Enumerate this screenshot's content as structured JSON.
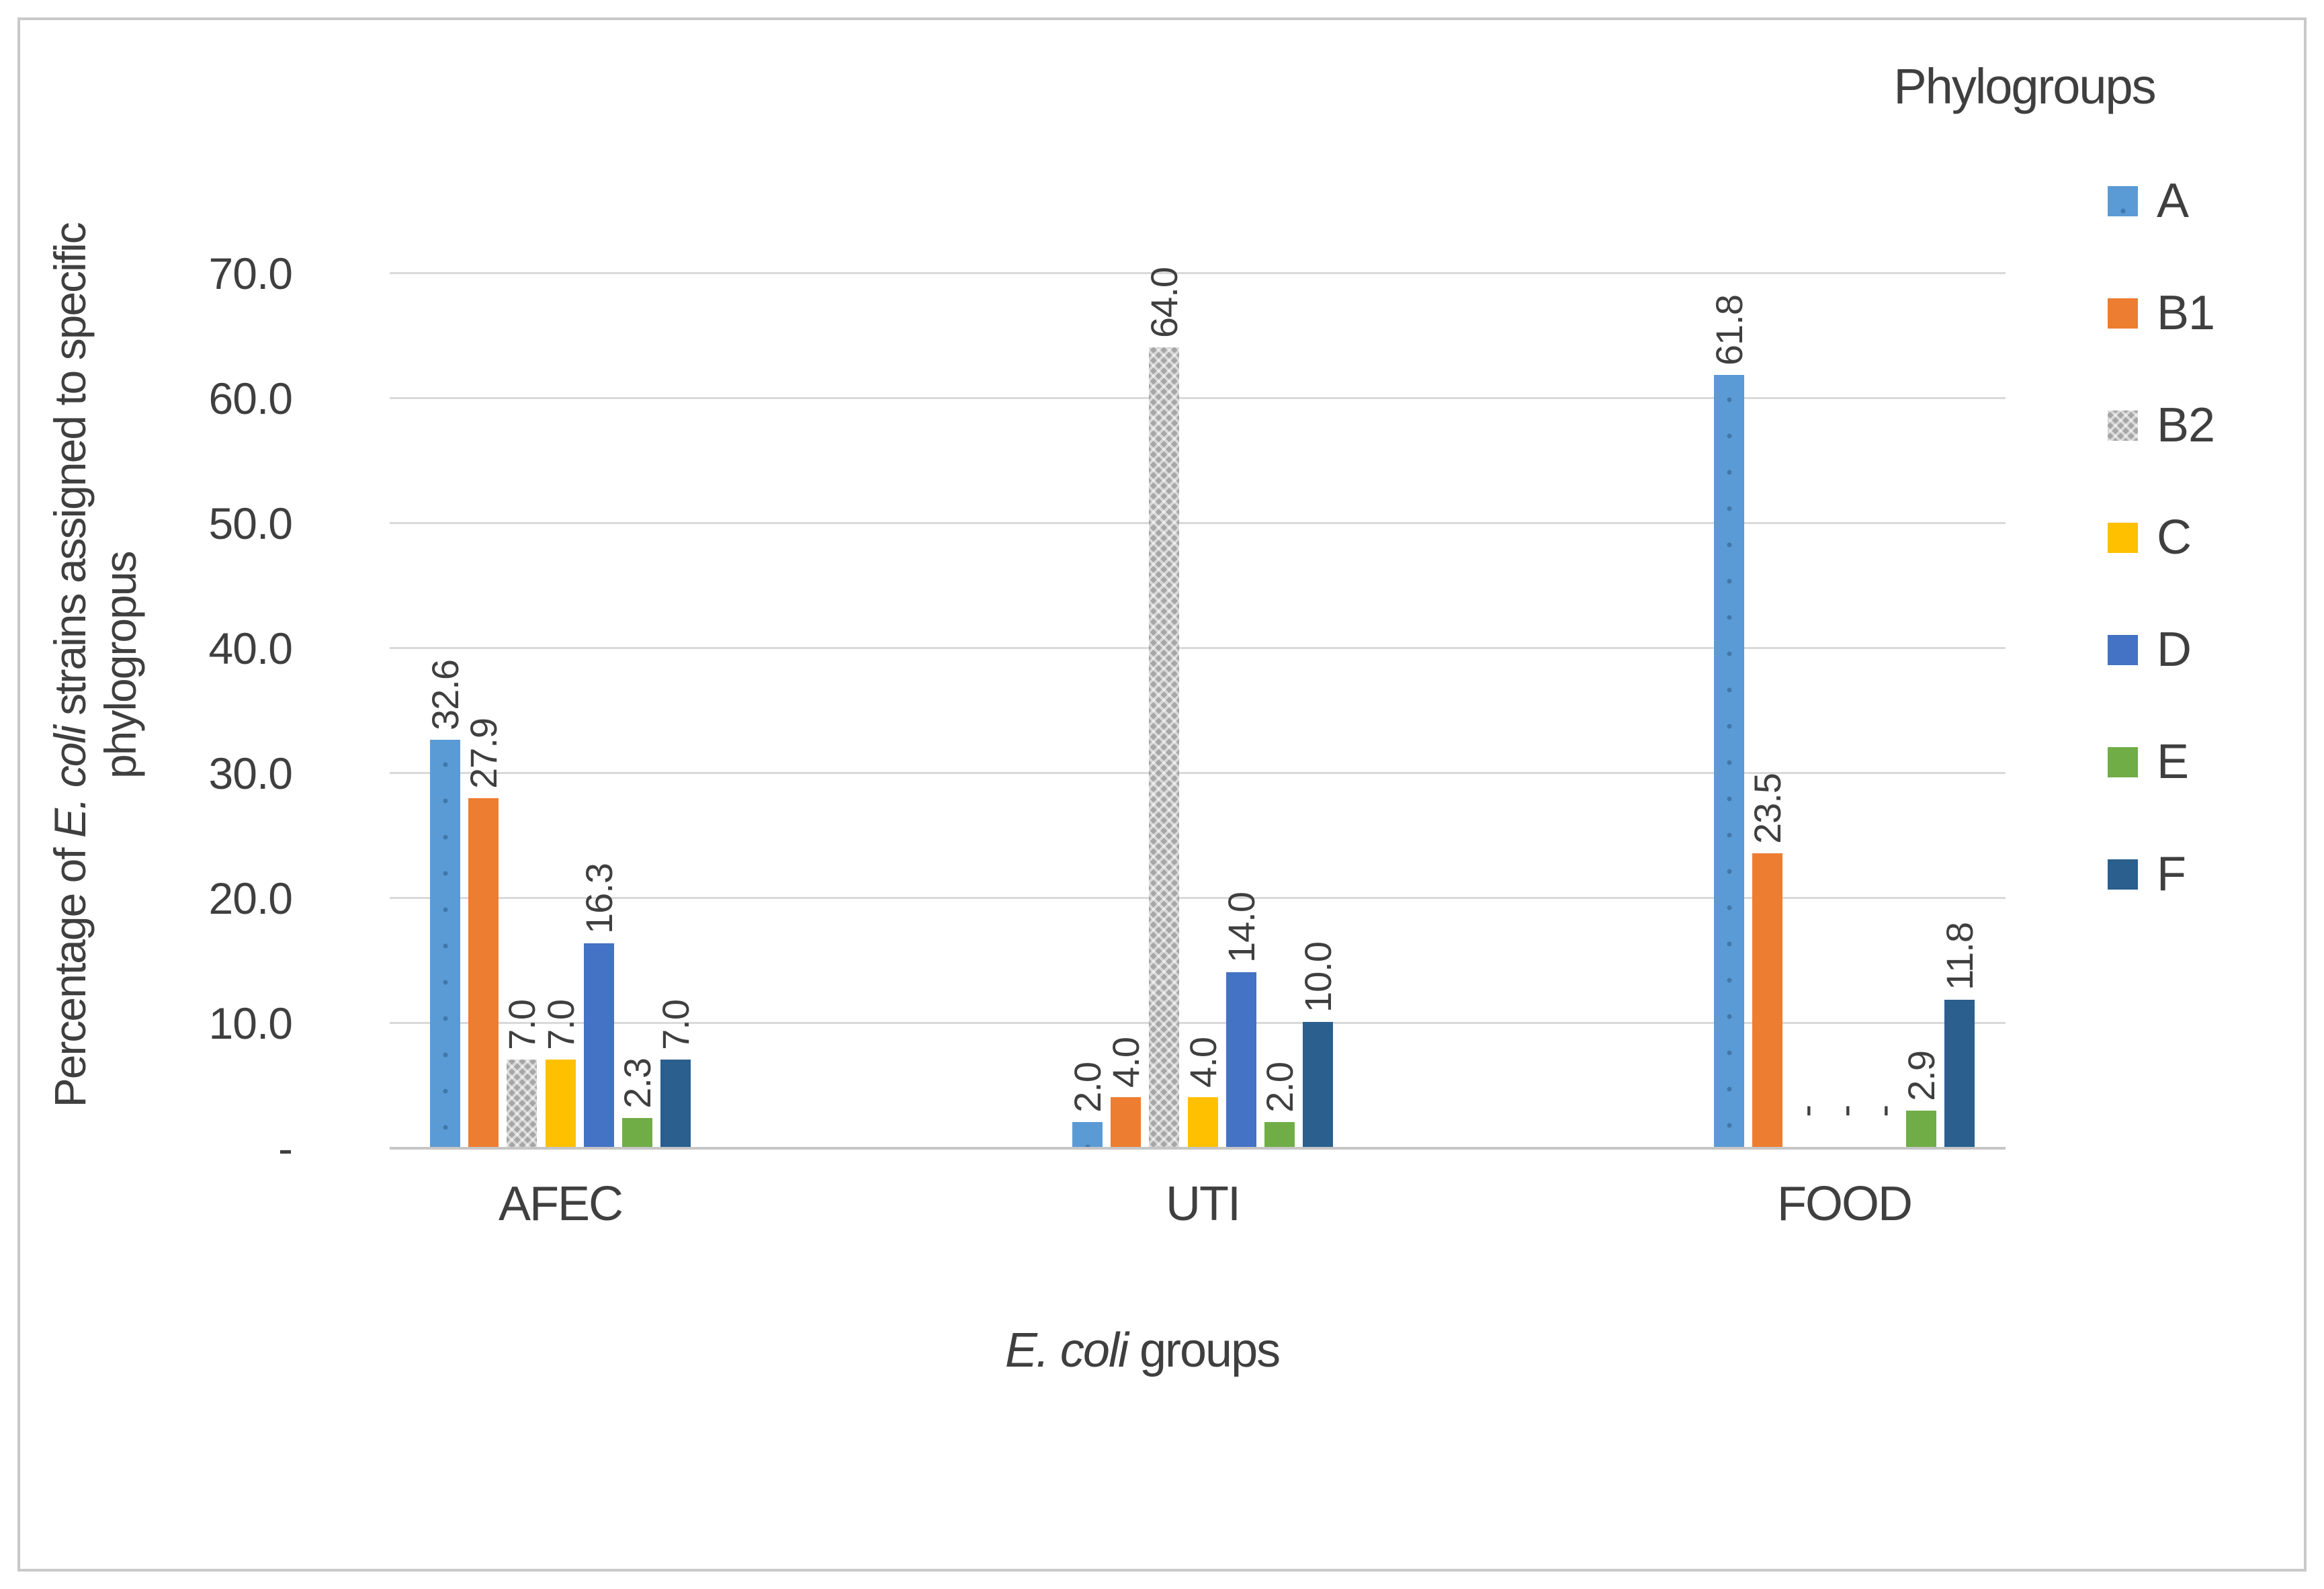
{
  "figure": {
    "border_color": "#c9c9c9",
    "background": "#ffffff"
  },
  "y_axis": {
    "title_prefix": "Percentage of ",
    "title_italic": "E. coli",
    "title_suffix": " strains assigned to specific",
    "title_line2": "phylogropus",
    "tick_labels": [
      "70.0",
      "60.0",
      "50.0",
      "40.0",
      "30.0",
      "20.0",
      "10.0",
      "-"
    ],
    "min": 0,
    "max": 70,
    "step": 10
  },
  "x_axis": {
    "title_italic": "E. coli",
    "title_suffix": " groups",
    "categories": [
      "AFEC",
      "UTI",
      "FOOD"
    ]
  },
  "legend": {
    "title": "Phylogroups",
    "items": [
      {
        "label": "A",
        "color": "#5B9BD5",
        "pattern": "dots"
      },
      {
        "label": "B1",
        "color": "#ED7D31",
        "pattern": "none"
      },
      {
        "label": "B2",
        "color": "#A6A6A6",
        "pattern": "crosshatch"
      },
      {
        "label": "C",
        "color": "#FFC000",
        "pattern": "none"
      },
      {
        "label": "D",
        "color": "#4472C4",
        "pattern": "none"
      },
      {
        "label": "E",
        "color": "#70AD47",
        "pattern": "none"
      },
      {
        "label": "F",
        "color": "#2A5F8E",
        "pattern": "none"
      }
    ]
  },
  "chart_data": {
    "type": "bar",
    "title": "",
    "xlabel": "E. coli groups",
    "ylabel": "Percentage of E. coli strains assigned to specific phylogropus",
    "ylim": [
      0,
      70
    ],
    "ytick_step": 10,
    "grid": true,
    "legend_position": "right",
    "legend_title": "Phylogroups",
    "categories": [
      "AFEC",
      "UTI",
      "FOOD"
    ],
    "series": [
      {
        "name": "A",
        "color": "#5B9BD5",
        "pattern": "dots",
        "values": [
          32.6,
          2.0,
          61.8
        ]
      },
      {
        "name": "B1",
        "color": "#ED7D31",
        "pattern": "none",
        "values": [
          27.9,
          4.0,
          23.5
        ]
      },
      {
        "name": "B2",
        "color": "#A6A6A6",
        "pattern": "crosshatch",
        "values": [
          7.0,
          64.0,
          0
        ]
      },
      {
        "name": "C",
        "color": "#FFC000",
        "pattern": "none",
        "values": [
          7.0,
          4.0,
          0
        ]
      },
      {
        "name": "D",
        "color": "#4472C4",
        "pattern": "none",
        "values": [
          16.3,
          14.0,
          0
        ]
      },
      {
        "name": "E",
        "color": "#70AD47",
        "pattern": "none",
        "values": [
          2.3,
          2.0,
          2.9
        ]
      },
      {
        "name": "F",
        "color": "#2A5F8E",
        "pattern": "none",
        "values": [
          7.0,
          10.0,
          11.8
        ]
      }
    ],
    "value_labels": [
      [
        "32.6",
        "27.9",
        "7.0",
        "7.0",
        "16.3",
        "2.3",
        "7.0"
      ],
      [
        "2.0",
        "4.0",
        "64.0",
        "4.0",
        "14.0",
        "2.0",
        "10.0"
      ],
      [
        "61.8",
        "23.5",
        "-",
        "-",
        "-",
        "2.9",
        "11.8"
      ]
    ]
  }
}
